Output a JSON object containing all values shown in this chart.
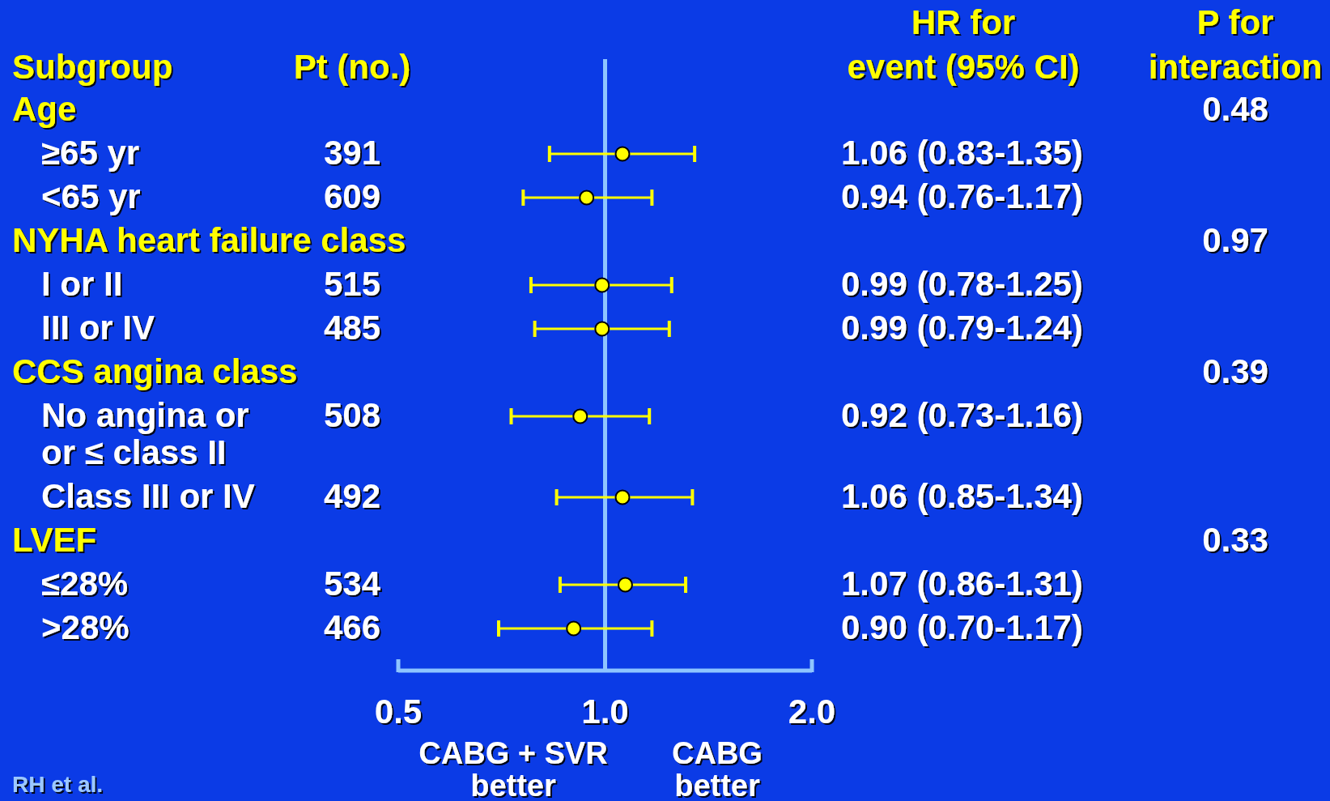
{
  "chart_data": {
    "type": "scatter",
    "orientation": "horizontal",
    "ylabel": "Subgroup",
    "categories": [
      null,
      "≥65 yr",
      "<65 yr",
      null,
      "I or II",
      "III or IV",
      null,
      "No angina or\nor ≤ class II",
      "Class III or IV",
      null,
      "≤28%",
      ">28%"
    ],
    "values": [
      null,
      1.06,
      0.94,
      null,
      0.99,
      0.99,
      null,
      0.92,
      1.06,
      null,
      1.07,
      0.9
    ],
    "errors": [
      null,
      [
        0.83,
        1.35
      ],
      [
        0.76,
        1.17
      ],
      null,
      [
        0.78,
        1.25
      ],
      [
        0.79,
        1.24
      ],
      null,
      [
        0.73,
        1.16
      ],
      [
        0.85,
        1.34
      ],
      null,
      [
        0.86,
        1.31
      ],
      [
        0.7,
        1.17
      ]
    ],
    "value_labels": [
      null,
      "1.06 (0.83-1.35)",
      "0.94 (0.76-1.17)",
      null,
      "0.99 (0.78-1.25)",
      "0.99 (0.79-1.24)",
      null,
      "0.92 (0.73-1.16)",
      "1.06 (0.85-1.34)",
      null,
      "1.07 (0.86-1.31)",
      "0.90 (0.70-1.17)"
    ],
    "color": "#ffff00",
    "marker": "circle",
    "log": "x",
    "xlim": [
      0.5,
      2
    ],
    "xticks": [
      0.5,
      {
        "value": 1,
        "label": "1.0"
      },
      {
        "value": 2,
        "label": "2.0"
      }
    ],
    "ref_lines": [
      {
        "axis": "x",
        "value": 1,
        "color": "#8ec5ff"
      }
    ],
    "annotations": [
      "Pt (no.)",
      "HR for\nevent (95% CI)",
      "P for\ninteraction",
      "CABG + SVR\nbetter",
      "CABG\nbetter",
      "RH et al.",
      "Age",
      "NYHA heart failure class",
      "CCS angina class",
      "LVEF",
      "0.48",
      "0.97",
      "0.39",
      "0.33",
      "391",
      "609",
      "515",
      "485",
      "508",
      "492",
      "534",
      "466"
    ]
  }
}
